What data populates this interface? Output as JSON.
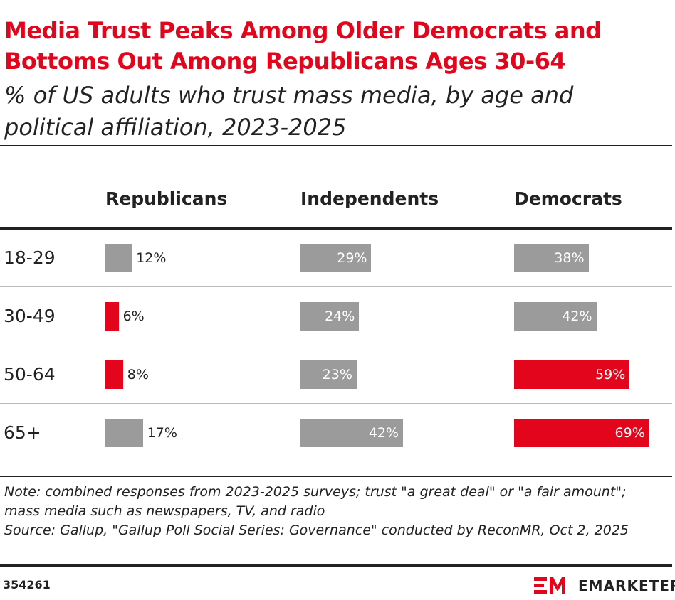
{
  "chart_data": {
    "type": "bar",
    "title": "Media Trust Peaks Among Older Democrats and Bottoms Out Among Republicans Ages 30-64",
    "subtitle": "% of US adults who trust mass media, by age and political affiliation, 2023-2025",
    "categories": [
      "18-29",
      "30-49",
      "50-64",
      "65+"
    ],
    "series": [
      {
        "name": "Republicans",
        "values": [
          12,
          6,
          8,
          17
        ],
        "value_labels": [
          "12%",
          "6%",
          "8%",
          "17%"
        ],
        "colors": [
          "#9b9b9b",
          "#e3051b",
          "#e3051b",
          "#9b9b9b"
        ]
      },
      {
        "name": "Independents",
        "values": [
          29,
          24,
          23,
          42
        ],
        "value_labels": [
          "29%",
          "24%",
          "23%",
          "42%"
        ],
        "colors": [
          "#9b9b9b",
          "#9b9b9b",
          "#9b9b9b",
          "#9b9b9b"
        ]
      },
      {
        "name": "Democrats",
        "values": [
          38,
          42,
          59,
          69
        ],
        "value_labels": [
          "38%",
          "42%",
          "59%",
          "69%"
        ],
        "colors": [
          "#9b9b9b",
          "#9b9b9b",
          "#e3051b",
          "#e3051b"
        ]
      }
    ],
    "note": "Note: combined responses from 2023-2025 surveys; trust \"a great deal\" or \"a fair amount\"; mass media such as newspapers, TV, and radio",
    "source": "Source: Gallup, \"Gallup Poll Social Series: Governance\" conducted by ReconMR, Oct 2, 2025",
    "chart_id": "354261",
    "brand": "EMARKETER"
  }
}
